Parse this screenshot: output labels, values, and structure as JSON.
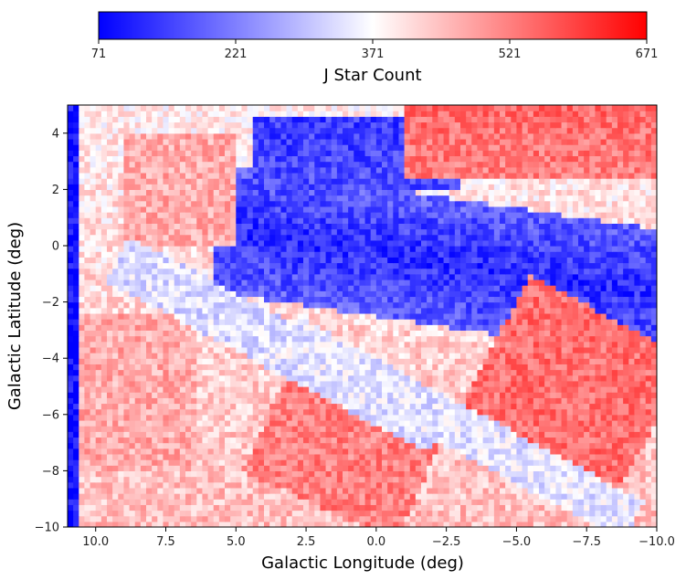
{
  "chart_data": {
    "type": "heatmap",
    "xlabel": "Galactic Longitude (deg)",
    "ylabel": "Galactic Latitude (deg)",
    "xlim": [
      11,
      -10
    ],
    "ylim": [
      -10,
      5
    ],
    "x_ticks": [
      10.0,
      7.5,
      5.0,
      2.5,
      0.0,
      -2.5,
      -5.0,
      -7.5,
      -10.0
    ],
    "x_tick_labels": [
      "10.0",
      "7.5",
      "5.0",
      "2.5",
      "0.0",
      "−2.5",
      "−5.0",
      "−7.5",
      "−10.0"
    ],
    "y_ticks": [
      4,
      2,
      0,
      -2,
      -4,
      -6,
      -8,
      -10
    ],
    "y_tick_labels": [
      "4",
      "2",
      "0",
      "−2",
      "−4",
      "−6",
      "−8",
      "−10"
    ],
    "colorbar": {
      "label": "J Star Count",
      "range": [
        71,
        671
      ],
      "ticks": [
        71,
        221,
        371,
        521,
        671
      ],
      "tick_labels": [
        "71",
        "221",
        "371",
        "521",
        "671"
      ],
      "colormap": "bwr",
      "colors": {
        "low": "#0000ff",
        "mid": "#ffffff",
        "high": "#ff0000"
      },
      "orientation": "horizontal",
      "position": "top"
    },
    "grid": false,
    "regions": [
      {
        "description": "dense band of low counts",
        "lon_range": [
          6,
          -10
        ],
        "lat_range": [
          -3,
          3
        ],
        "value_approx": 100
      },
      {
        "description": "high-count patch",
        "lon_range": [
          4,
          -2
        ],
        "lat_range": [
          -10,
          -5
        ],
        "value_approx": 500
      },
      {
        "description": "high-count patch",
        "lon_range": [
          -4,
          -10
        ],
        "lat_range": [
          -8,
          -2
        ],
        "value_approx": 520
      },
      {
        "description": "high-count patch",
        "lon_range": [
          -1,
          -10
        ],
        "lat_range": [
          2,
          5
        ],
        "value_approx": 520
      },
      {
        "description": "moderate-high background",
        "lon_range": [
          11,
          4
        ],
        "lat_range": [
          -10,
          5
        ],
        "value_approx": 440
      }
    ]
  }
}
